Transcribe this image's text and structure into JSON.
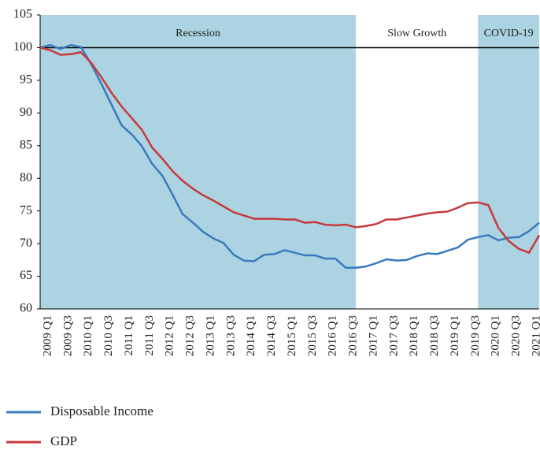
{
  "chart_data": {
    "type": "line",
    "categories": [
      "2009 Q1",
      null,
      "2009 Q3",
      null,
      "2010 Q1",
      null,
      "2010 Q3",
      null,
      "2011 Q1",
      null,
      "2011 Q3",
      null,
      "2012 Q1",
      null,
      "2012 Q3",
      null,
      "2013 Q1",
      null,
      "2013 Q3",
      null,
      "2014 Q1",
      null,
      "2014 Q3",
      null,
      "2015 Q1",
      null,
      "2015 Q3",
      null,
      "2016 Q1",
      null,
      "2016 Q3",
      null,
      "2017 Q1",
      null,
      "2017 Q3",
      null,
      "2018 Q1",
      null,
      "2018 Q3",
      null,
      "2019 Q1",
      null,
      "2019 Q3",
      null,
      "2020 Q1",
      null,
      "2020 Q3",
      null,
      "2021 Q1",
      null
    ],
    "series": [
      {
        "name": "Disposable Income",
        "color": "#3a7abf",
        "values": [
          100,
          100.4,
          99.8,
          100.4,
          100.1,
          97.5,
          94.5,
          91.3,
          88.1,
          86.7,
          84.9,
          82.2,
          80.4,
          77.5,
          74.5,
          73.2,
          71.8,
          70.8,
          70.1,
          68.3,
          67.4,
          67.3,
          68.3,
          68.4,
          69.0,
          68.6,
          68.2,
          68.2,
          67.7,
          67.7,
          66.3,
          66.3,
          66.5,
          67.0,
          67.6,
          67.4,
          67.5,
          68.1,
          68.5,
          68.4,
          68.9,
          69.4,
          70.6,
          71.0,
          71.3,
          70.5,
          70.9,
          71.0,
          71.9,
          73.2
        ]
      },
      {
        "name": "GDP",
        "color": "#c8383a",
        "values": [
          100,
          99.6,
          98.9,
          99.0,
          99.3,
          97.7,
          95.5,
          93.1,
          91.0,
          89.2,
          87.4,
          84.7,
          83.0,
          81.1,
          79.6,
          78.4,
          77.4,
          76.6,
          75.7,
          74.8,
          74.3,
          73.8,
          73.8,
          73.8,
          73.7,
          73.7,
          73.2,
          73.3,
          72.9,
          72.8,
          72.9,
          72.5,
          72.7,
          73.0,
          73.7,
          73.7,
          74.0,
          74.3,
          74.6,
          74.8,
          74.9,
          75.5,
          76.2,
          76.3,
          75.9,
          72.4,
          70.4,
          69.2,
          68.6,
          71.3
        ]
      }
    ],
    "regions": [
      {
        "label": "Recession",
        "from": 0,
        "to": 31,
        "color": "#abd3e1"
      },
      {
        "label": "Slow Growth",
        "from": 31,
        "to": 43,
        "color": "#ffffff"
      },
      {
        "label": "COVID-19",
        "from": 43,
        "to": 49,
        "color": "#abd3e1"
      }
    ],
    "reference_line": 100,
    "ylim": [
      60,
      105
    ],
    "yticks": [
      60,
      65,
      70,
      75,
      80,
      85,
      90,
      95,
      100,
      105
    ],
    "legend": "bottom"
  }
}
